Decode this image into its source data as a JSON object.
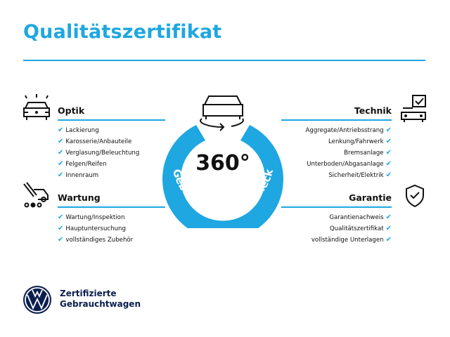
{
  "title": "Qualitätszertifikat",
  "center": {
    "big": "360°",
    "arc_text": "Gebrauchtwagen-Check"
  },
  "left": [
    {
      "heading": "Optik",
      "icon": "car-lights-icon",
      "items": [
        "Lackierung",
        "Karosserie/Anbauteile",
        "Verglasung/Beleuchtung",
        "Felgen/Reifen",
        "Innenraum"
      ]
    },
    {
      "heading": "Wartung",
      "icon": "service-car-icon",
      "items": [
        "Wartung/Inspektion",
        "Hauptuntersuchung",
        "vollständiges Zubehör"
      ]
    }
  ],
  "right": [
    {
      "heading": "Technik",
      "icon": "car-checklist-icon",
      "items": [
        "Aggregate/Antriebsstrang",
        "Lenkung/Fahrwerk",
        "Bremsanlage",
        "Unterboden/Abgasanlage",
        "Sicherheit/Elektrik"
      ]
    },
    {
      "heading": "Garantie",
      "icon": "shield-check-icon",
      "items": [
        "Garantienachweis",
        "Qualitätszertifikat",
        "vollständige Unterlagen"
      ]
    }
  ],
  "check": "✔",
  "logo": {
    "line1": "Zertifizierte",
    "line2": "Gebrauchtwagen"
  },
  "colors": {
    "accent": "#1ea7e1",
    "logo": "#0b1f4d"
  }
}
